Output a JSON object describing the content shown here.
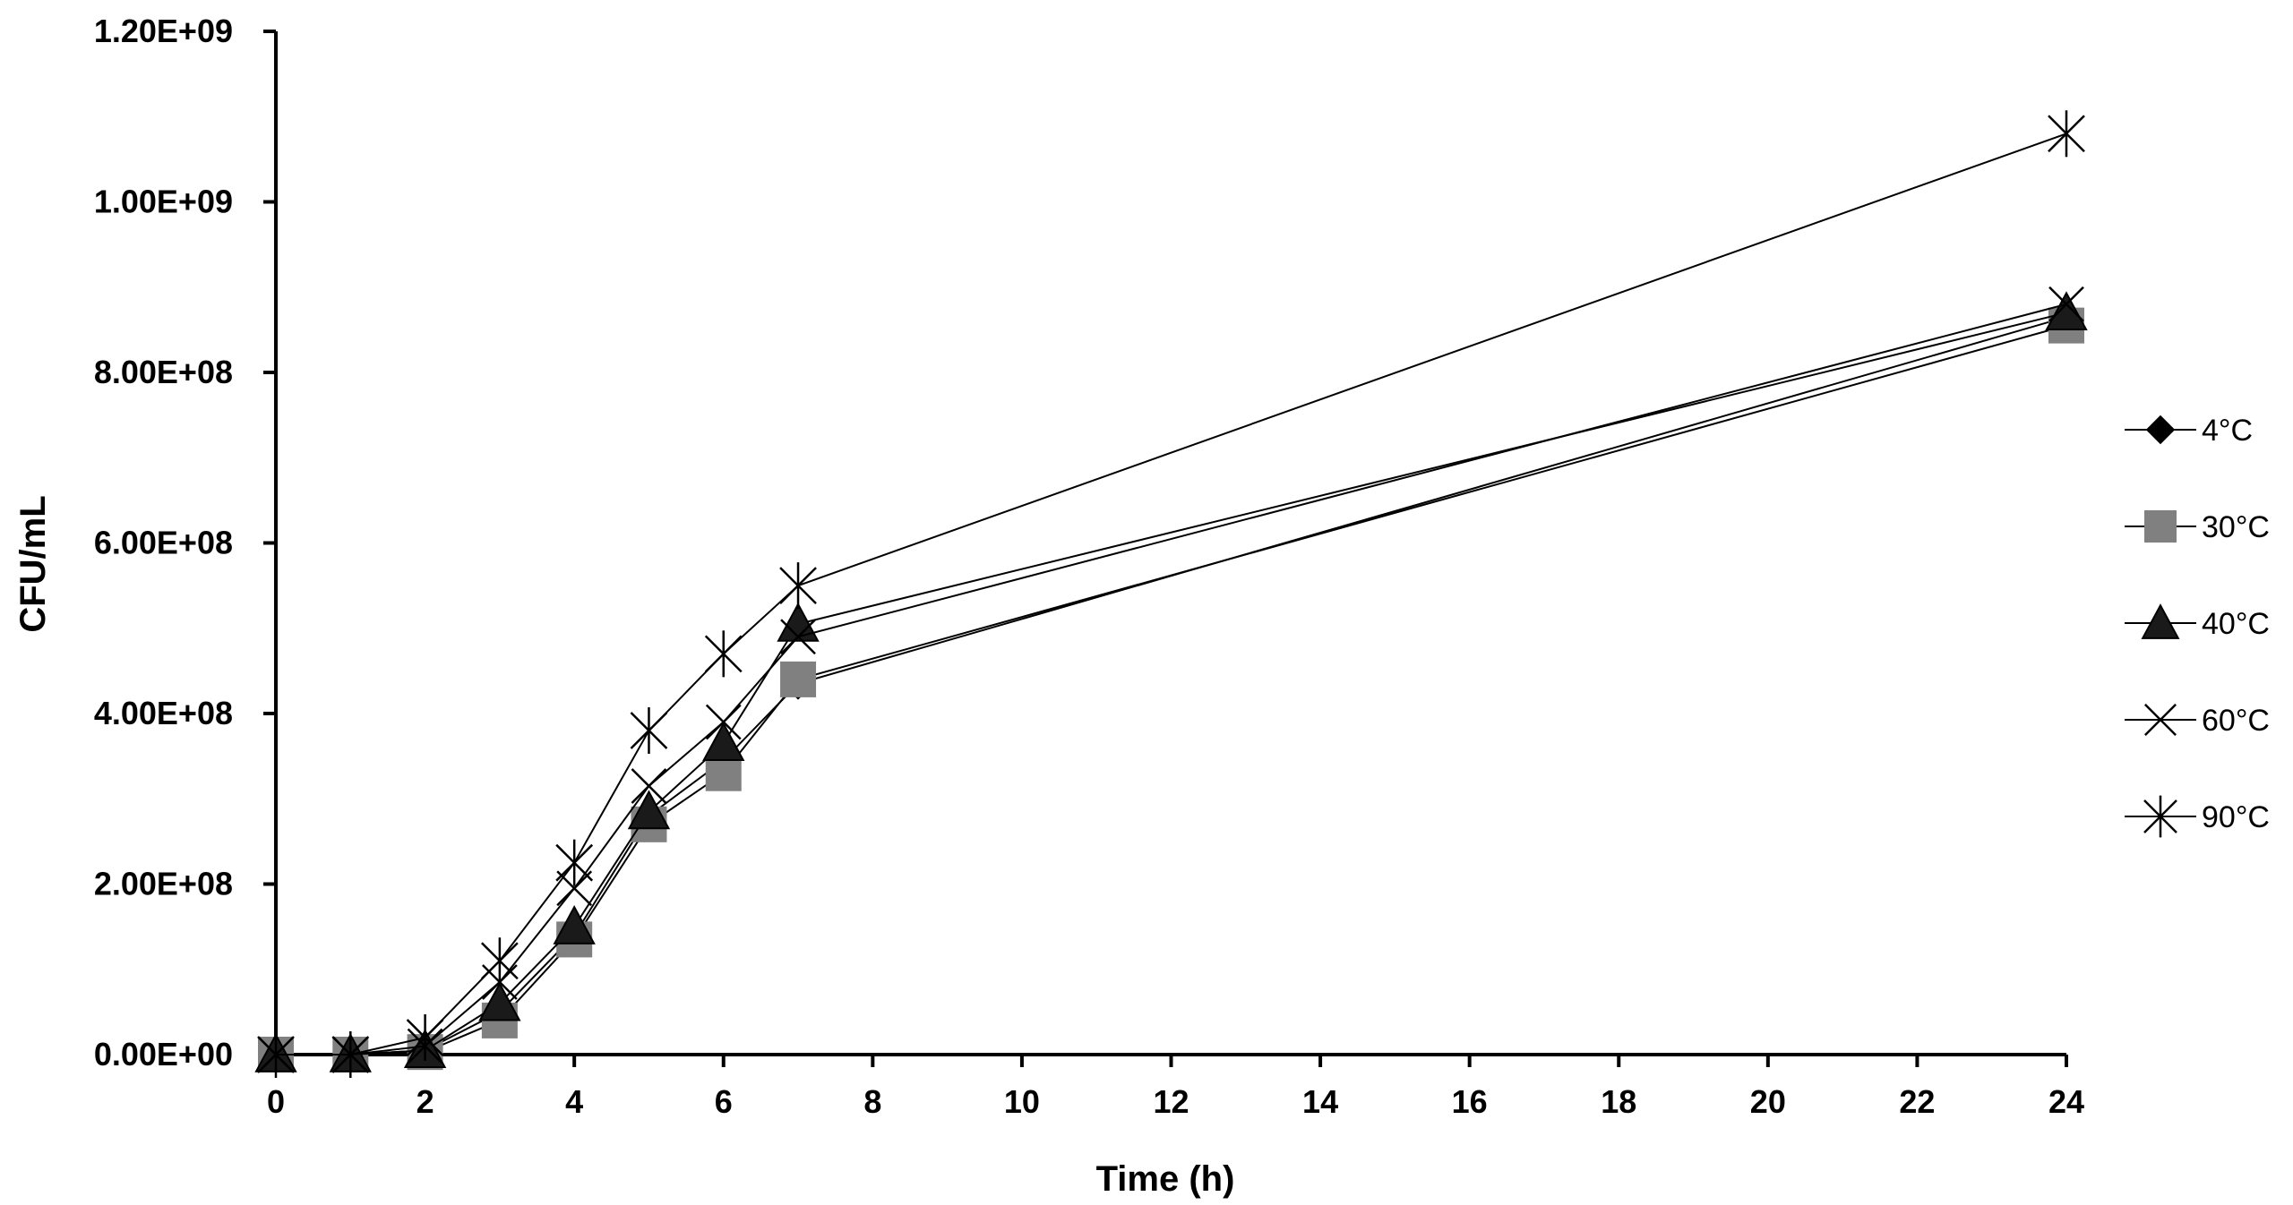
{
  "chart_data": {
    "type": "line",
    "title": "",
    "xlabel": "Time (h)",
    "ylabel": "CFU/mL",
    "xlim": [
      0,
      24
    ],
    "ylim": [
      0,
      1200000000
    ],
    "x_ticks": [
      "0",
      "2",
      "4",
      "6",
      "8",
      "10",
      "12",
      "14",
      "16",
      "18",
      "20",
      "22",
      "24"
    ],
    "y_ticks": [
      "0.00E+00",
      "2.00E+08",
      "4.00E+08",
      "6.00E+08",
      "8.00E+08",
      "1.00E+09",
      "1.20E+09"
    ],
    "grid": false,
    "legend_position": "right",
    "x": [
      0,
      1,
      2,
      3,
      4,
      5,
      6,
      7,
      24
    ],
    "series": [
      {
        "name": "4°C",
        "marker": "diamond",
        "color": "#000000",
        "values": [
          0,
          0,
          5000000,
          50000000,
          140000000,
          280000000,
          345000000,
          435000000,
          865000000
        ]
      },
      {
        "name": "30°C",
        "marker": "square",
        "color": "#808080",
        "values": [
          0,
          0,
          3000000,
          40000000,
          135000000,
          270000000,
          330000000,
          440000000,
          855000000
        ]
      },
      {
        "name": "40°C",
        "marker": "triangle",
        "color": "#1a1a1a",
        "values": [
          0,
          0,
          5000000,
          60000000,
          150000000,
          285000000,
          365000000,
          505000000,
          870000000
        ]
      },
      {
        "name": "60°C",
        "marker": "x",
        "color": "#000000",
        "values": [
          0,
          0,
          10000000,
          85000000,
          195000000,
          315000000,
          390000000,
          490000000,
          880000000
        ]
      },
      {
        "name": "90°C",
        "marker": "star",
        "color": "#000000",
        "values": [
          0,
          0,
          20000000,
          110000000,
          225000000,
          380000000,
          470000000,
          550000000,
          1080000000
        ]
      }
    ]
  }
}
